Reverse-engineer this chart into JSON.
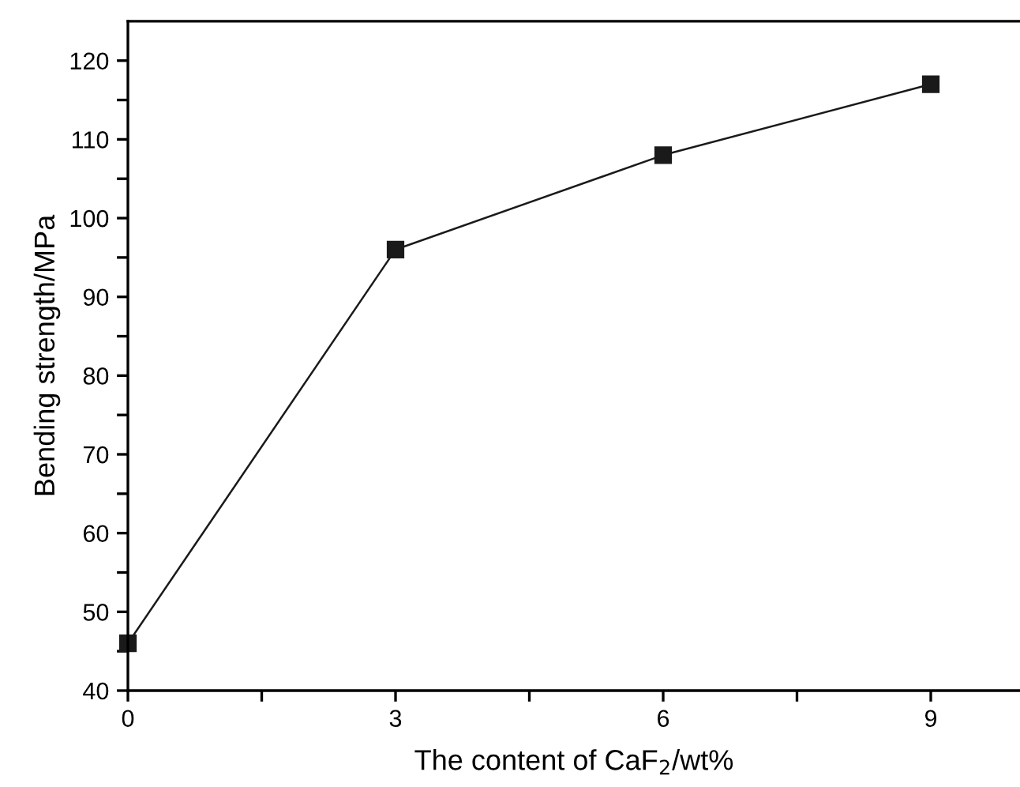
{
  "chart_data": {
    "type": "line",
    "xlabel": "The content of CaF$_{2}$/wt%",
    "ylabel": "Bending strength/MPa",
    "x": [
      0,
      3,
      6,
      9
    ],
    "series": [
      {
        "color": "#1a1a1a",
        "values": [
          46,
          96,
          108,
          117
        ]
      }
    ],
    "marker": "square",
    "line_style": "solid",
    "grid": false,
    "legend": false,
    "xlim": [
      0,
      10
    ],
    "xticks": [
      0,
      {
        "value": 1.5,
        "label": null
      },
      3,
      {
        "value": 4.5,
        "label": null
      },
      6,
      {
        "value": 7.5,
        "label": null
      },
      9
    ],
    "ylim": [
      40,
      125
    ],
    "yticks": [
      40,
      {
        "value": 45,
        "label": null
      },
      50,
      {
        "value": 55,
        "label": null
      },
      60,
      {
        "value": 65,
        "label": null
      },
      70,
      {
        "value": 75,
        "label": null
      },
      80,
      {
        "value": 85,
        "label": null
      },
      90,
      {
        "value": 95,
        "label": null
      },
      100,
      {
        "value": 105,
        "label": null
      },
      110,
      {
        "value": 115,
        "label": null
      },
      120
    ]
  }
}
